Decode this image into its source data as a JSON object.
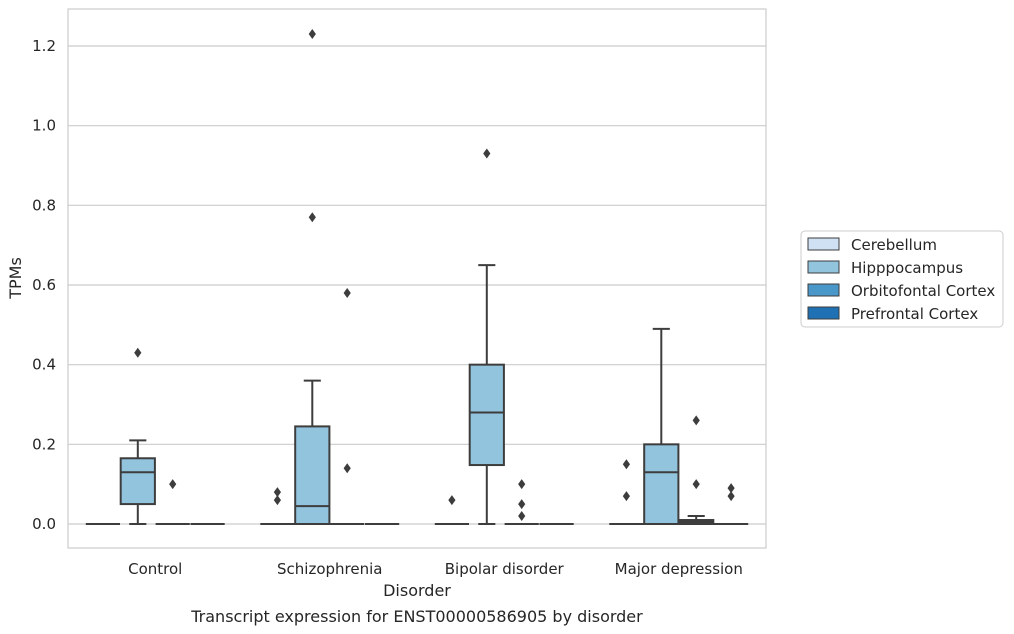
{
  "caption": "Transcript expression for ENST00000586905 by disorder",
  "chart_data": {
    "type": "box",
    "xlabel": "Disorder",
    "ylabel": "TPMs",
    "ylim": [
      -0.06,
      1.29
    ],
    "yticks": [
      0.0,
      0.2,
      0.4,
      0.6,
      0.8,
      1.0,
      1.2
    ],
    "ytick_labels": [
      "0.0",
      "0.2",
      "0.4",
      "0.6",
      "0.8",
      "1.0",
      "1.2"
    ],
    "grid": "horizontal",
    "legend_placement": "right",
    "categories": [
      "Control",
      "Schizophrenia",
      "Bipolar disorder",
      "Major depression"
    ],
    "series": [
      {
        "name": "Cerebellum",
        "color": "#cfe1f2",
        "boxes": [
          {
            "q1": 0,
            "median": 0,
            "q3": 0,
            "whislo": 0,
            "whishi": 0,
            "fliers": []
          },
          {
            "q1": 0,
            "median": 0,
            "q3": 0,
            "whislo": 0,
            "whishi": 0,
            "fliers": [
              0.06,
              0.08
            ]
          },
          {
            "q1": 0,
            "median": 0,
            "q3": 0,
            "whislo": 0,
            "whishi": 0,
            "fliers": [
              0.06
            ]
          },
          {
            "q1": 0,
            "median": 0,
            "q3": 0,
            "whislo": 0,
            "whishi": 0,
            "fliers": [
              0.07,
              0.15
            ]
          }
        ]
      },
      {
        "name": "Hipppocampus",
        "color": "#93c4de",
        "boxes": [
          {
            "q1": 0.05,
            "median": 0.13,
            "q3": 0.165,
            "whislo": 0,
            "whishi": 0.21,
            "fliers": [
              0.43
            ]
          },
          {
            "q1": 0,
            "median": 0.045,
            "q3": 0.245,
            "whislo": 0,
            "whishi": 0.36,
            "fliers": [
              0.77,
              1.23
            ]
          },
          {
            "q1": 0.148,
            "median": 0.28,
            "q3": 0.4,
            "whislo": 0,
            "whishi": 0.65,
            "fliers": [
              0.93
            ]
          },
          {
            "q1": 0,
            "median": 0.13,
            "q3": 0.2,
            "whislo": 0,
            "whishi": 0.49,
            "fliers": []
          }
        ]
      },
      {
        "name": "Orbitofontal Cortex",
        "color": "#4a98c9",
        "boxes": [
          {
            "q1": 0,
            "median": 0,
            "q3": 0,
            "whislo": 0,
            "whishi": 0,
            "fliers": [
              0.1
            ]
          },
          {
            "q1": 0,
            "median": 0,
            "q3": 0,
            "whislo": 0,
            "whishi": 0,
            "fliers": [
              0.14,
              0.58
            ]
          },
          {
            "q1": 0,
            "median": 0,
            "q3": 0,
            "whislo": 0,
            "whishi": 0,
            "fliers": [
              0.02,
              0.05,
              0.1
            ]
          },
          {
            "q1": 0,
            "median": 0.005,
            "q3": 0.01,
            "whislo": 0,
            "whishi": 0.02,
            "fliers": [
              0.1,
              0.26
            ]
          }
        ]
      },
      {
        "name": "Prefrontal Cortex",
        "color": "#2070b4",
        "boxes": [
          {
            "q1": 0,
            "median": 0,
            "q3": 0,
            "whislo": 0,
            "whishi": 0,
            "fliers": []
          },
          {
            "q1": 0,
            "median": 0,
            "q3": 0,
            "whislo": 0,
            "whishi": 0,
            "fliers": []
          },
          {
            "q1": 0,
            "median": 0,
            "q3": 0,
            "whislo": 0,
            "whishi": 0,
            "fliers": []
          },
          {
            "q1": 0,
            "median": 0,
            "q3": 0,
            "whislo": 0,
            "whishi": 0,
            "fliers": [
              0.07,
              0.09
            ]
          }
        ]
      }
    ]
  }
}
